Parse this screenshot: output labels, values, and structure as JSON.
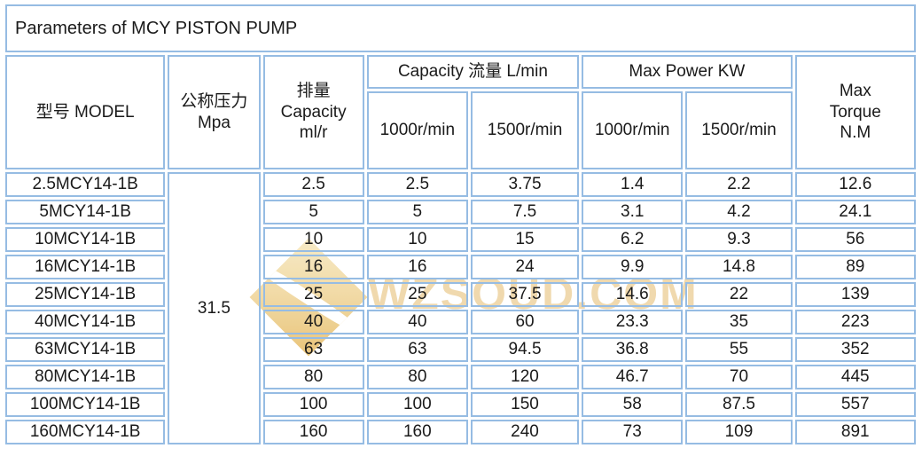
{
  "title": "Parameters of MCY PISTON PUMP",
  "colors": {
    "border": "#96BCE3",
    "text": "#1A1A1A",
    "watermark_gold": "#E6BA62",
    "background": "#FFFFFF"
  },
  "watermark": {
    "text": "WZSOUD.COM",
    "logo": "diamond-swoosh"
  },
  "table": {
    "headers": {
      "model": "型号 MODEL",
      "pressure": "公称压力\nMpa",
      "displacement": "排量\nCapacity\nml/r",
      "capacity_group": "Capacity 流量 L/min",
      "power_group": "Max Power KW",
      "torque": "Max\nTorque\nN.M",
      "capacity_sub_1": "1000r/min",
      "capacity_sub_2": "1500r/min",
      "power_sub_1": "1000r/min",
      "power_sub_2": "1500r/min"
    },
    "pressure_value": "31.5",
    "rows": [
      {
        "model": "2.5MCY14-1B",
        "displacement": "2.5",
        "cap1000": "2.5",
        "cap1500": "3.75",
        "pow1000": "1.4",
        "pow1500": "2.2",
        "torque": "12.6"
      },
      {
        "model": "5MCY14-1B",
        "displacement": "5",
        "cap1000": "5",
        "cap1500": "7.5",
        "pow1000": "3.1",
        "pow1500": "4.2",
        "torque": "24.1"
      },
      {
        "model": "10MCY14-1B",
        "displacement": "10",
        "cap1000": "10",
        "cap1500": "15",
        "pow1000": "6.2",
        "pow1500": "9.3",
        "torque": "56"
      },
      {
        "model": "16MCY14-1B",
        "displacement": "16",
        "cap1000": "16",
        "cap1500": "24",
        "pow1000": "9.9",
        "pow1500": "14.8",
        "torque": "89"
      },
      {
        "model": "25MCY14-1B",
        "displacement": "25",
        "cap1000": "25",
        "cap1500": "37.5",
        "pow1000": "14.6",
        "pow1500": "22",
        "torque": "139"
      },
      {
        "model": "40MCY14-1B",
        "displacement": "40",
        "cap1000": "40",
        "cap1500": "60",
        "pow1000": "23.3",
        "pow1500": "35",
        "torque": "223"
      },
      {
        "model": "63MCY14-1B",
        "displacement": "63",
        "cap1000": "63",
        "cap1500": "94.5",
        "pow1000": "36.8",
        "pow1500": "55",
        "torque": "352"
      },
      {
        "model": "80MCY14-1B",
        "displacement": "80",
        "cap1000": "80",
        "cap1500": "120",
        "pow1000": "46.7",
        "pow1500": "70",
        "torque": "445"
      },
      {
        "model": "100MCY14-1B",
        "displacement": "100",
        "cap1000": "100",
        "cap1500": "150",
        "pow1000": "58",
        "pow1500": "87.5",
        "torque": "557"
      },
      {
        "model": "160MCY14-1B",
        "displacement": "160",
        "cap1000": "160",
        "cap1500": "240",
        "pow1000": "73",
        "pow1500": "109",
        "torque": "891"
      }
    ]
  }
}
